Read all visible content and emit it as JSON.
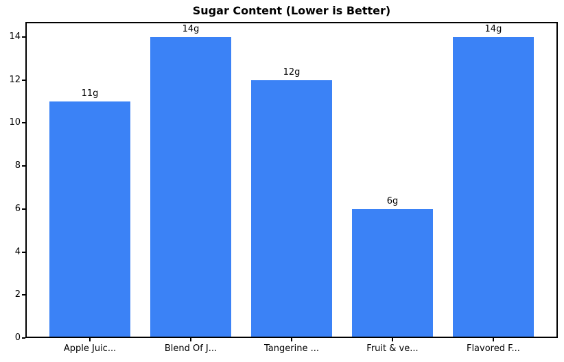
{
  "chart_data": {
    "type": "bar",
    "title": "Sugar Content (Lower is Better)",
    "categories": [
      "Apple Juic...",
      "Blend Of J...",
      "Tangerine ...",
      "Fruit & ve...",
      "Flavored F..."
    ],
    "values": [
      11,
      14,
      12,
      6,
      14
    ],
    "value_labels": [
      "11g",
      "14g",
      "12g",
      "6g",
      "14g"
    ],
    "xlabel": "",
    "ylabel": "",
    "ylim": [
      0,
      14.7
    ],
    "yticks": [
      0,
      2,
      4,
      6,
      8,
      10,
      12,
      14
    ],
    "bar_color": "#3b82f6",
    "grid": false,
    "legend_position": "none"
  }
}
